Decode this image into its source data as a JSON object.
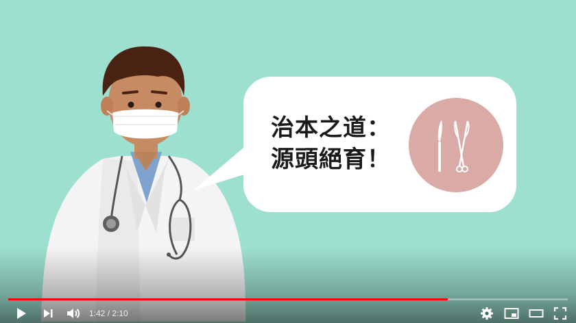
{
  "video": {
    "caption_line1": "治本之道：",
    "caption_line2": "源頭絕育！",
    "illustration": "doctor-with-mask-and-stethoscope",
    "circle_icon": "scalpel-and-scissors-icon",
    "background_color": "#9de0cf",
    "circle_color": "#d9aaa6"
  },
  "player": {
    "current_time": "1:42",
    "separator": " / ",
    "duration": "2:10",
    "progress_fraction": 0.785,
    "progress_color": "#ff0000",
    "controls": {
      "left": [
        "play-icon",
        "next-icon",
        "volume-icon"
      ],
      "right": [
        "settings-gear-icon",
        "miniplayer-icon",
        "theater-mode-icon",
        "fullscreen-icon"
      ]
    }
  }
}
